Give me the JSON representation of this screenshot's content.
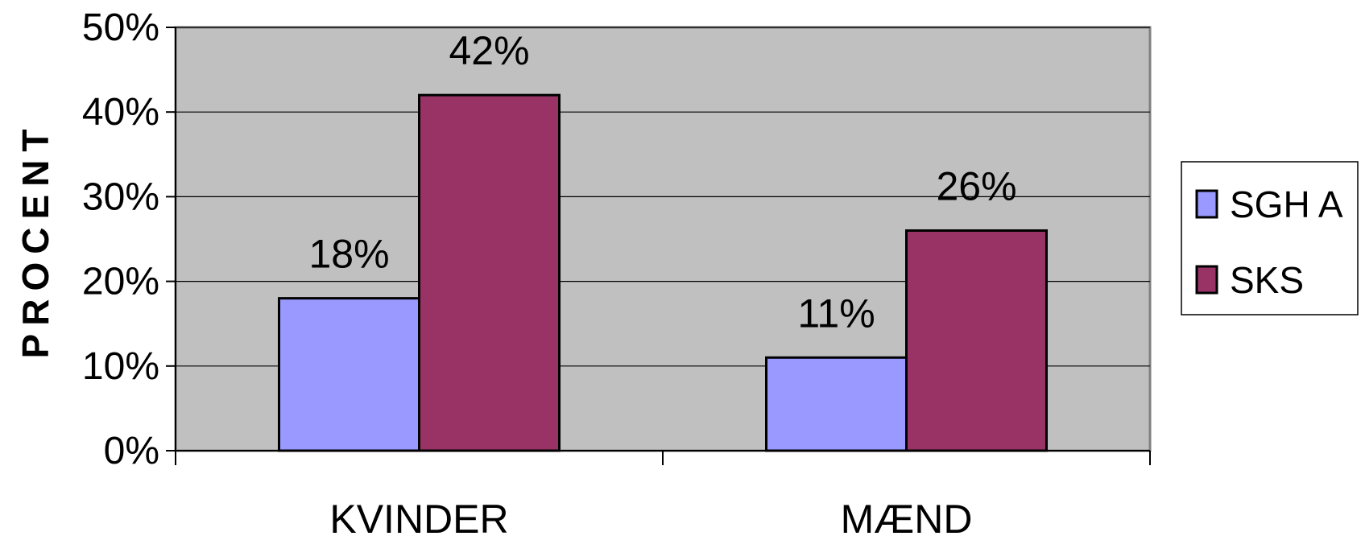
{
  "chart_data": {
    "type": "bar",
    "categories": [
      "KVINDER",
      "MÆND"
    ],
    "series": [
      {
        "name": "SGH A",
        "values": [
          18,
          11
        ],
        "labels": [
          "18%",
          "11%"
        ],
        "color": "#9999ff"
      },
      {
        "name": "SKS",
        "values": [
          42,
          26
        ],
        "labels": [
          "42%",
          "26%"
        ],
        "color": "#993366"
      }
    ],
    "ylabel": "PROCENT",
    "ylim": [
      0,
      50
    ],
    "yticks": [
      0,
      10,
      20,
      30,
      40,
      50
    ],
    "ytick_labels": [
      "0%",
      "10%",
      "20%",
      "30%",
      "40%",
      "50%"
    ],
    "grid": true,
    "legend_position": "right",
    "plot_background": "#c0c0c0"
  }
}
